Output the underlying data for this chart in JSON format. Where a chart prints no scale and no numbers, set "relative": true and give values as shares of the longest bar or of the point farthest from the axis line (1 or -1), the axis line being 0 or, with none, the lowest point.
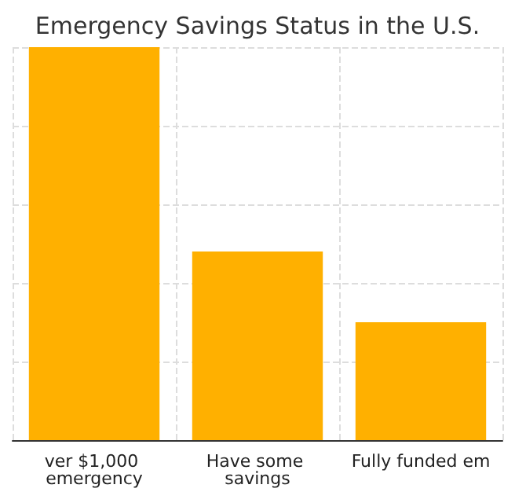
{
  "chart_data": {
    "type": "bar",
    "title": "Emergency Savings Status in the U.S.",
    "categories": [
      "ver $1,000 emergency",
      "Have some savings",
      "Fully funded em"
    ],
    "values": [
      1,
      0.48,
      0.3
    ],
    "color": "#ffb000",
    "relative": true,
    "grid": true
  }
}
